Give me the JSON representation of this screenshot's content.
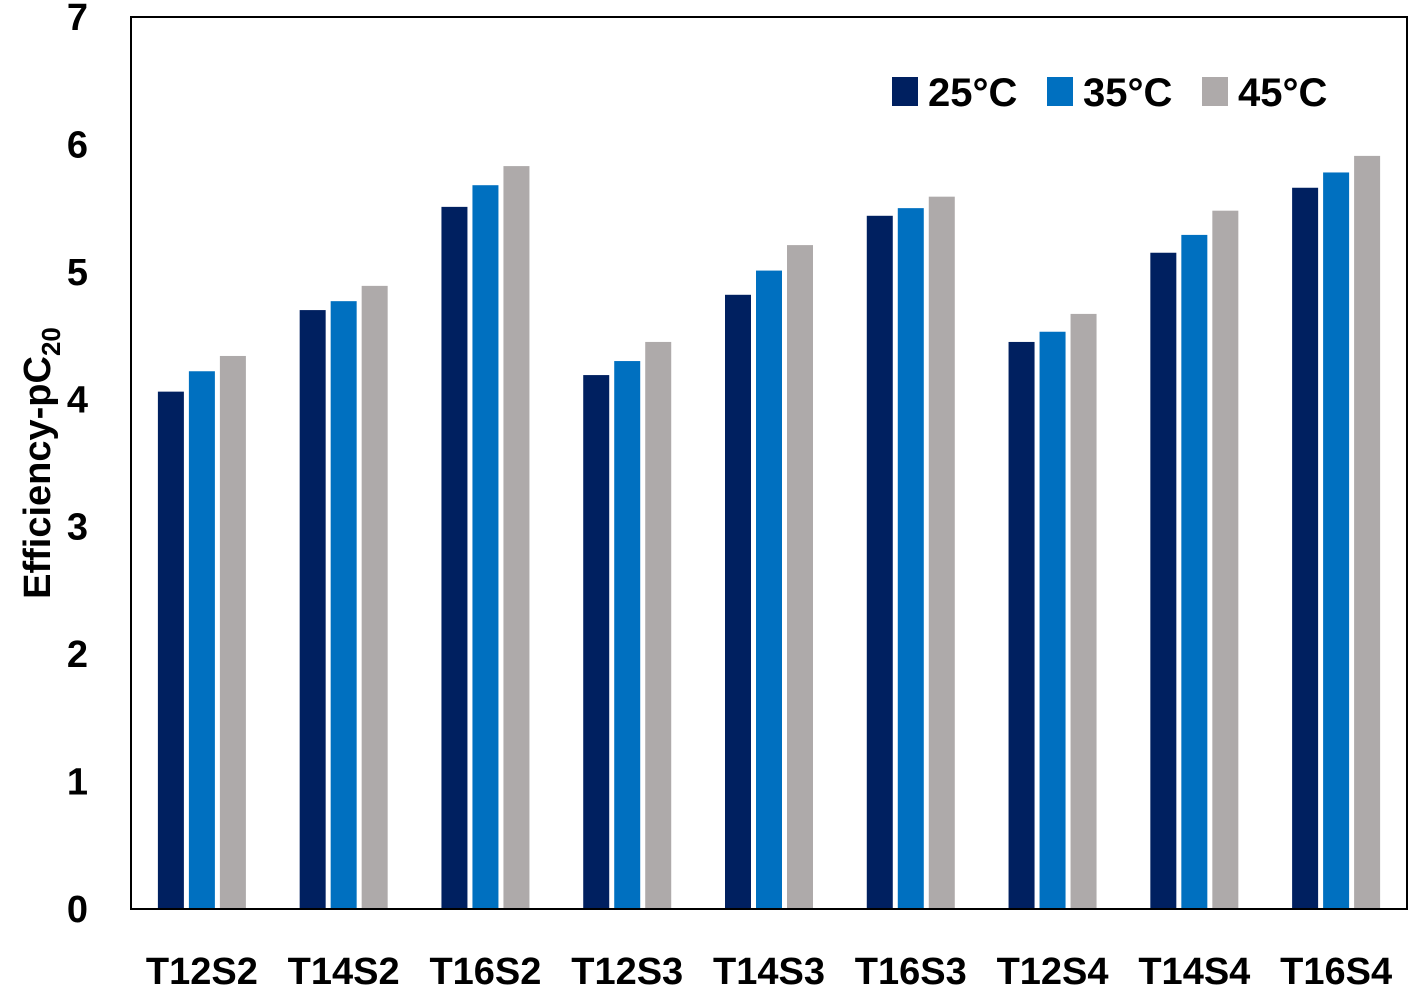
{
  "chart_data": {
    "type": "bar",
    "categories": [
      "T12S2",
      "T14S2",
      "T16S2",
      "T12S3",
      "T14S3",
      "T16S3",
      "T12S4",
      "T14S4",
      "T16S4"
    ],
    "series": [
      {
        "name": "25°C",
        "color": "#002060",
        "values": [
          4.06,
          4.7,
          5.51,
          4.19,
          4.82,
          5.44,
          4.45,
          5.15,
          5.66
        ]
      },
      {
        "name": "35°C",
        "color": "#0070C0",
        "values": [
          4.22,
          4.77,
          5.68,
          4.3,
          5.01,
          5.5,
          4.53,
          5.29,
          5.78
        ]
      },
      {
        "name": "45°C",
        "color": "#AEAAAA",
        "values": [
          4.34,
          4.89,
          5.83,
          4.45,
          5.21,
          5.59,
          4.67,
          5.48,
          5.91
        ]
      }
    ],
    "title": "",
    "xlabel": "",
    "ylabel_main": "Efficiency-pC",
    "ylabel_sub": "20",
    "ylim": [
      0,
      7
    ],
    "yticks": [
      "0",
      "1",
      "2",
      "3",
      "4",
      "5",
      "6",
      "7"
    ],
    "grid": false,
    "legend_position": "top-right"
  }
}
